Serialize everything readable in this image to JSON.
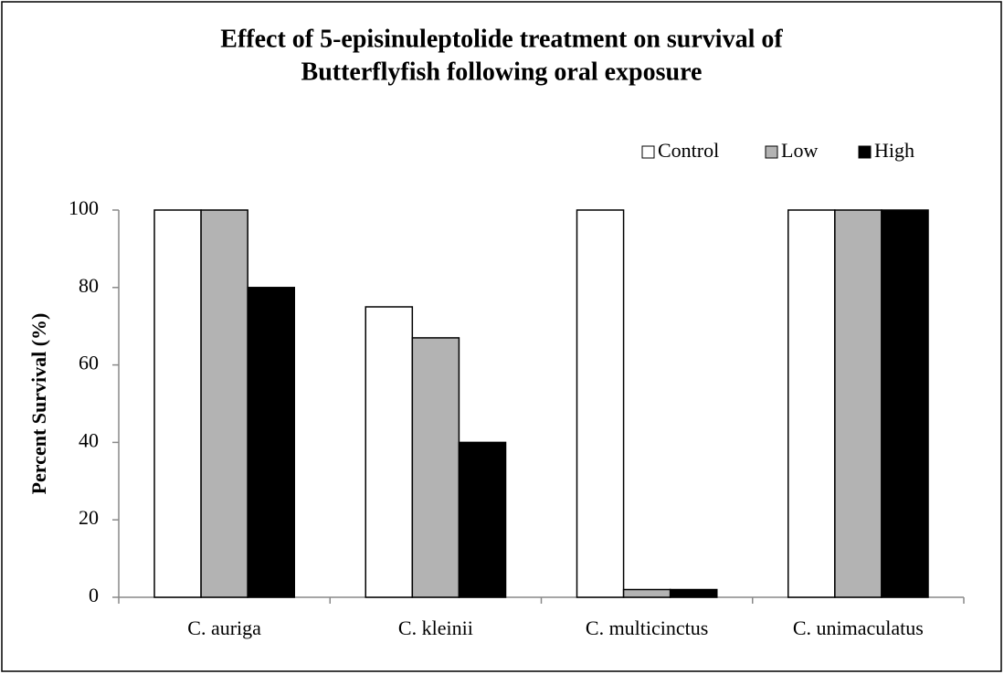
{
  "chart_data": {
    "type": "bar",
    "title": [
      "Effect of 5-episinuleptolide treatment on survival of",
      "Butterflyfish following oral exposure"
    ],
    "y_label": "Percent Survival (%)",
    "categories": [
      "C. auriga",
      "C. kleinii",
      "C. multicinctus",
      "C. unimaculatus"
    ],
    "series": [
      {
        "name": "Control",
        "color": "#ffffff",
        "values": [
          100,
          75,
          100,
          100
        ]
      },
      {
        "name": "Low",
        "color": "#b3b3b3",
        "values": [
          100,
          67,
          2,
          100
        ]
      },
      {
        "name": "High",
        "color": "#000000",
        "values": [
          80,
          40,
          2,
          100
        ]
      }
    ],
    "ylim": [
      0,
      100
    ],
    "yticks": [
      0,
      20,
      40,
      60,
      80,
      100
    ],
    "legend": "top-right"
  }
}
